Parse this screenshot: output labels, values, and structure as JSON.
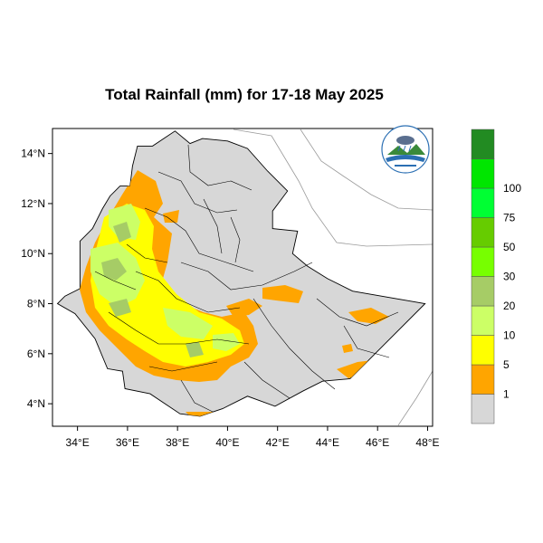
{
  "title": "Total Rainfall (mm) for 17-18 May 2025",
  "y_ticks": [
    {
      "label": "14°N",
      "value": 14
    },
    {
      "label": "12°N",
      "value": 12
    },
    {
      "label": "10°N",
      "value": 10
    },
    {
      "label": "8°N",
      "value": 8
    },
    {
      "label": "6°N",
      "value": 6
    },
    {
      "label": "4°N",
      "value": 4
    }
  ],
  "x_ticks": [
    {
      "label": "34°E",
      "value": 34
    },
    {
      "label": "36°E",
      "value": 36
    },
    {
      "label": "38°E",
      "value": 38
    },
    {
      "label": "40°E",
      "value": 40
    },
    {
      "label": "42°E",
      "value": 42
    },
    {
      "label": "44°E",
      "value": 44
    },
    {
      "label": "46°E",
      "value": 46
    },
    {
      "label": "48°E",
      "value": 48
    }
  ],
  "extent": {
    "lon": [
      33,
      48.2
    ],
    "lat": [
      3.1,
      15
    ]
  },
  "legend": {
    "levels": [
      "1",
      "5",
      "10",
      "20",
      "30",
      "50",
      "75",
      "100"
    ],
    "colors": [
      "#d7d7d7",
      "#ffa500",
      "#ffff00",
      "#ccff66",
      "#a6cc66",
      "#77ff00",
      "#66cc00",
      "#00ff33",
      "#00e600",
      "#228b22"
    ]
  },
  "colors": {
    "land": "#d7d7d7",
    "orange": "#ffa500",
    "yellow": "#ffff00",
    "light_green": "#ccff66",
    "olive_green": "#a6cc66",
    "outline": "#000000"
  },
  "logo_icon": "ethiopian-meteorology-institute-logo"
}
